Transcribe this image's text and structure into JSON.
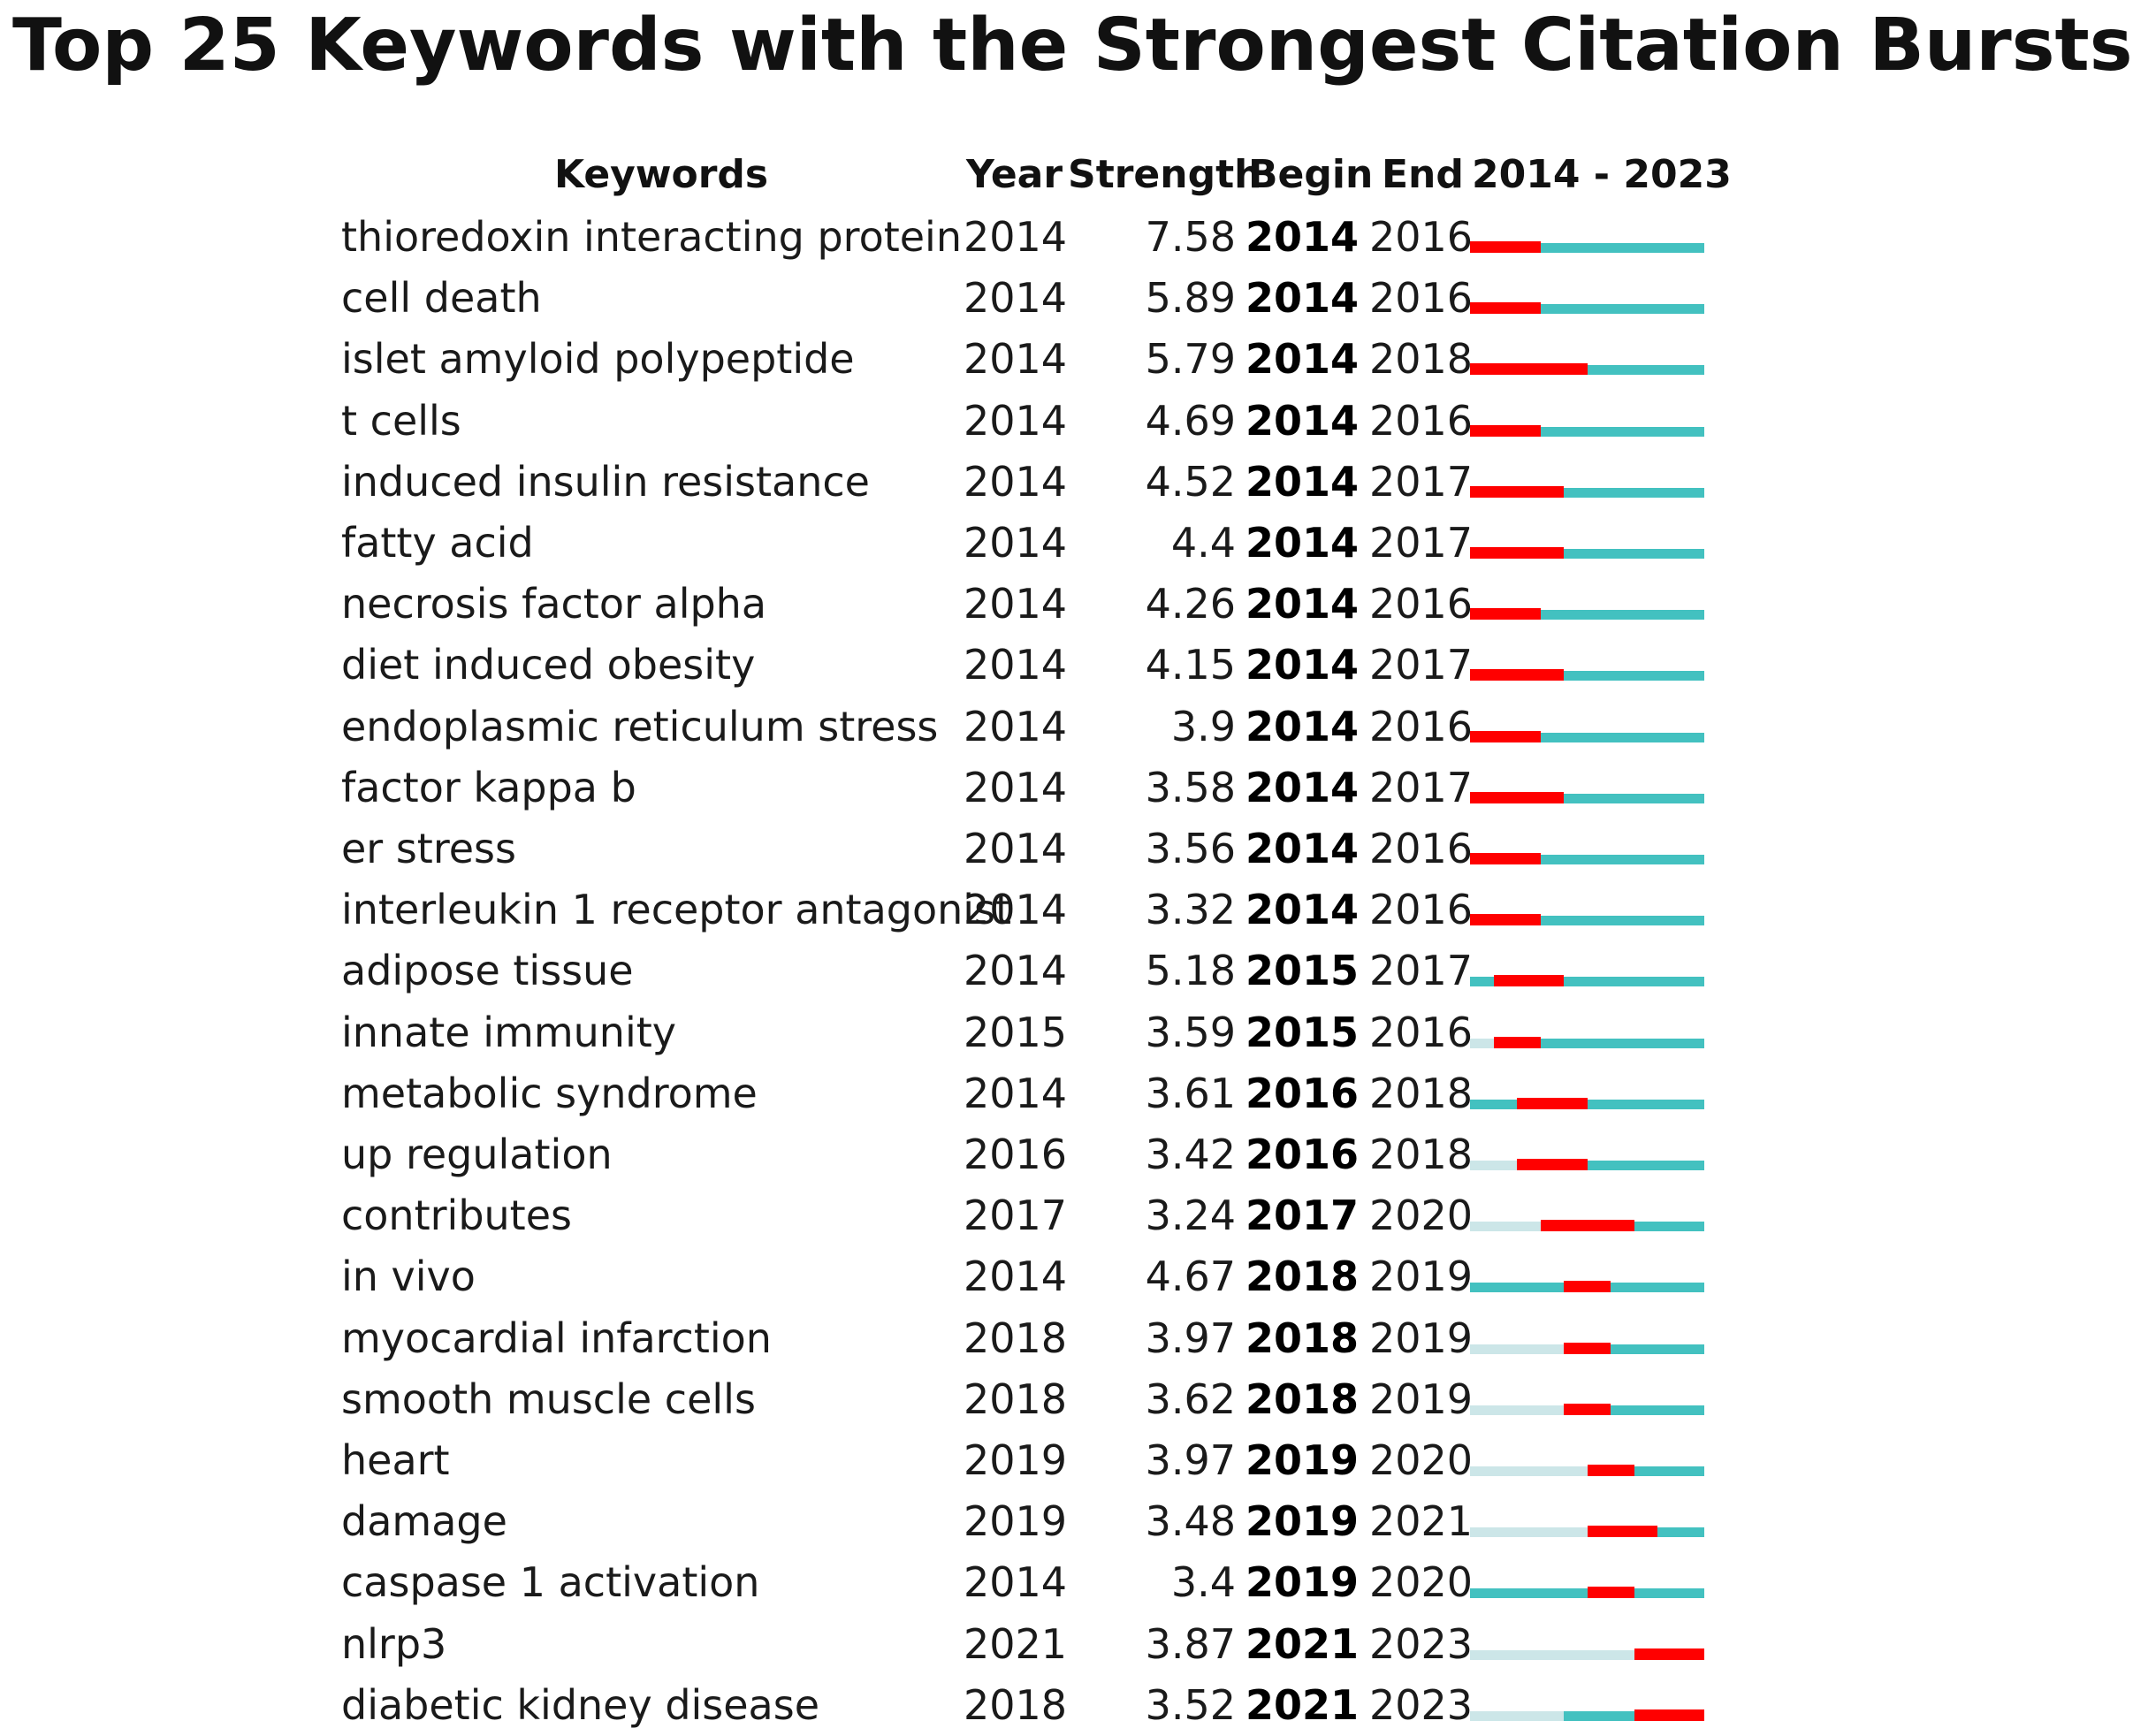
{
  "title": "Top 25 Keywords with the Strongest Citation Bursts",
  "headers": {
    "keywords": "Keywords",
    "year": "Year",
    "strength": "Strength",
    "begin": "Begin",
    "end": "End",
    "range": "2014 - 2023"
  },
  "colors": {
    "burst": "#ff0000",
    "active": "#43c1c0",
    "inactive": "#cce6e8"
  },
  "chart_data": {
    "type": "table",
    "title": "Top 25 Keywords with the Strongest Citation Bursts",
    "timeline_start": 2014,
    "timeline_end": 2023,
    "columns": [
      "Keywords",
      "Year",
      "Strength",
      "Begin",
      "End",
      "2014 - 2023"
    ],
    "rows": [
      {
        "keyword": "thioredoxin interacting protein",
        "year": "2014",
        "strength": "7.58",
        "begin": "2014",
        "end": "2016"
      },
      {
        "keyword": "cell death",
        "year": "2014",
        "strength": "5.89",
        "begin": "2014",
        "end": "2016"
      },
      {
        "keyword": "islet amyloid polypeptide",
        "year": "2014",
        "strength": "5.79",
        "begin": "2014",
        "end": "2018"
      },
      {
        "keyword": "t cells",
        "year": "2014",
        "strength": "4.69",
        "begin": "2014",
        "end": "2016"
      },
      {
        "keyword": "induced insulin resistance",
        "year": "2014",
        "strength": "4.52",
        "begin": "2014",
        "end": "2017"
      },
      {
        "keyword": "fatty acid",
        "year": "2014",
        "strength": "4.4",
        "begin": "2014",
        "end": "2017"
      },
      {
        "keyword": "necrosis factor alpha",
        "year": "2014",
        "strength": "4.26",
        "begin": "2014",
        "end": "2016"
      },
      {
        "keyword": "diet induced obesity",
        "year": "2014",
        "strength": "4.15",
        "begin": "2014",
        "end": "2017"
      },
      {
        "keyword": "endoplasmic reticulum stress",
        "year": "2014",
        "strength": "3.9",
        "begin": "2014",
        "end": "2016"
      },
      {
        "keyword": "factor kappa b",
        "year": "2014",
        "strength": "3.58",
        "begin": "2014",
        "end": "2017"
      },
      {
        "keyword": "er stress",
        "year": "2014",
        "strength": "3.56",
        "begin": "2014",
        "end": "2016"
      },
      {
        "keyword": "interleukin 1 receptor antagonist",
        "year": "2014",
        "strength": "3.32",
        "begin": "2014",
        "end": "2016"
      },
      {
        "keyword": "adipose tissue",
        "year": "2014",
        "strength": "5.18",
        "begin": "2015",
        "end": "2017"
      },
      {
        "keyword": "innate immunity",
        "year": "2015",
        "strength": "3.59",
        "begin": "2015",
        "end": "2016"
      },
      {
        "keyword": "metabolic syndrome",
        "year": "2014",
        "strength": "3.61",
        "begin": "2016",
        "end": "2018"
      },
      {
        "keyword": "up regulation",
        "year": "2016",
        "strength": "3.42",
        "begin": "2016",
        "end": "2018"
      },
      {
        "keyword": "contributes",
        "year": "2017",
        "strength": "3.24",
        "begin": "2017",
        "end": "2020"
      },
      {
        "keyword": "in vivo",
        "year": "2014",
        "strength": "4.67",
        "begin": "2018",
        "end": "2019"
      },
      {
        "keyword": "myocardial infarction",
        "year": "2018",
        "strength": "3.97",
        "begin": "2018",
        "end": "2019"
      },
      {
        "keyword": "smooth muscle cells",
        "year": "2018",
        "strength": "3.62",
        "begin": "2018",
        "end": "2019"
      },
      {
        "keyword": "heart",
        "year": "2019",
        "strength": "3.97",
        "begin": "2019",
        "end": "2020"
      },
      {
        "keyword": "damage",
        "year": "2019",
        "strength": "3.48",
        "begin": "2019",
        "end": "2021"
      },
      {
        "keyword": "caspase 1 activation",
        "year": "2014",
        "strength": "3.4",
        "begin": "2019",
        "end": "2020"
      },
      {
        "keyword": "nlrp3",
        "year": "2021",
        "strength": "3.87",
        "begin": "2021",
        "end": "2023"
      },
      {
        "keyword": "diabetic kidney disease",
        "year": "2018",
        "strength": "3.52",
        "begin": "2021",
        "end": "2023"
      }
    ]
  }
}
